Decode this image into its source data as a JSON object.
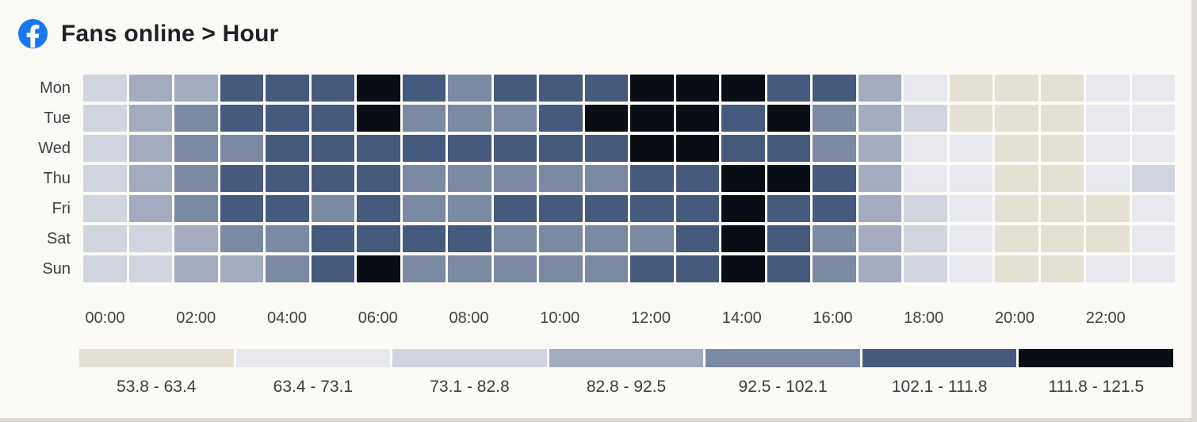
{
  "header": {
    "title": "Fans online > Hour",
    "icon": "facebook-icon"
  },
  "chart_data": {
    "type": "heatmap",
    "title": "Fans online > Hour",
    "rows": [
      "Mon",
      "Tue",
      "Wed",
      "Thu",
      "Fri",
      "Sat",
      "Sun"
    ],
    "columns_per_row": 24,
    "x_tick_labels": [
      "00:00",
      "02:00",
      "04:00",
      "06:00",
      "08:00",
      "10:00",
      "12:00",
      "14:00",
      "16:00",
      "18:00",
      "20:00",
      "22:00"
    ],
    "value_min": 53.8,
    "value_max": 121.5,
    "legend_position": "bottom",
    "grid": "off",
    "palette": [
      "#e5e0d4",
      "#e7e9ee",
      "#d0d5df",
      "#a3acbf",
      "#7b89a3",
      "#465a7e",
      "#090d16"
    ],
    "legend": [
      {
        "label": "53.8 - 63.4",
        "color": "#e5e0d4"
      },
      {
        "label": "63.4 - 73.1",
        "color": "#e7e9ee"
      },
      {
        "label": "73.1 - 82.8",
        "color": "#d0d5df"
      },
      {
        "label": "82.8 - 92.5",
        "color": "#a3acbf"
      },
      {
        "label": "92.5 - 102.1",
        "color": "#7b89a3"
      },
      {
        "label": "102.1 - 111.8",
        "color": "#465a7e"
      },
      {
        "label": "111.8 - 121.5",
        "color": "#090d16"
      }
    ],
    "bucket_note": "cell values are bucket indices 1-7 mapping to the legend ranges above (1 = 53.8-63.4 ... 7 = 111.8-121.5)",
    "cell_buckets": {
      "Mon": [
        3,
        4,
        4,
        6,
        6,
        6,
        7,
        6,
        5,
        6,
        6,
        6,
        7,
        7,
        7,
        6,
        6,
        4,
        2,
        1,
        1,
        1,
        2,
        2
      ],
      "Tue": [
        3,
        4,
        5,
        6,
        6,
        6,
        7,
        5,
        5,
        5,
        6,
        7,
        7,
        7,
        6,
        7,
        5,
        4,
        3,
        1,
        1,
        1,
        2,
        2
      ],
      "Wed": [
        3,
        4,
        5,
        5,
        6,
        6,
        6,
        6,
        6,
        6,
        6,
        6,
        7,
        7,
        6,
        6,
        5,
        4,
        2,
        2,
        1,
        1,
        2,
        2
      ],
      "Thu": [
        3,
        4,
        5,
        6,
        6,
        6,
        6,
        5,
        5,
        5,
        5,
        5,
        6,
        6,
        7,
        7,
        6,
        4,
        2,
        2,
        1,
        1,
        2,
        3
      ],
      "Fri": [
        3,
        4,
        5,
        6,
        6,
        5,
        6,
        5,
        5,
        6,
        6,
        6,
        6,
        6,
        7,
        6,
        6,
        4,
        3,
        2,
        1,
        1,
        1,
        2
      ],
      "Sat": [
        3,
        3,
        4,
        5,
        5,
        6,
        6,
        6,
        6,
        5,
        5,
        5,
        5,
        6,
        7,
        6,
        5,
        4,
        3,
        2,
        1,
        1,
        1,
        2
      ],
      "Sun": [
        3,
        3,
        4,
        4,
        5,
        6,
        7,
        5,
        5,
        5,
        5,
        5,
        6,
        6,
        7,
        6,
        5,
        4,
        3,
        2,
        1,
        1,
        2,
        2
      ]
    }
  },
  "colors": {
    "background": "#fbfaf6",
    "title_text": "#1d2126",
    "axis_text": "#3d4145",
    "legend_text": "#3a3d41",
    "window_edge": "#dedbd4",
    "facebook_blue": "#1877f2"
  }
}
